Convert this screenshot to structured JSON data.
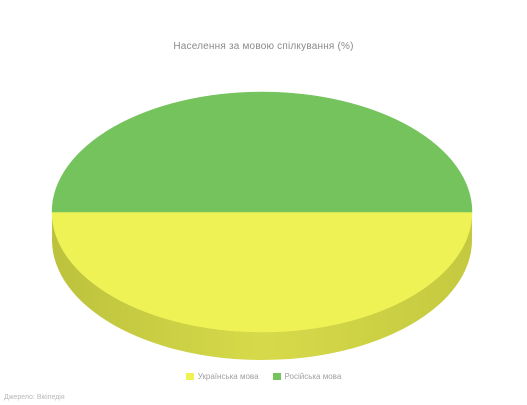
{
  "chart_data": {
    "type": "pie",
    "title": "Населення за мовою спілкування (%)",
    "slices": [
      {
        "label": "Українська мова",
        "value": 50,
        "color": "#eef255"
      },
      {
        "label": "Російська мова",
        "value": 50,
        "color": "#74c35c"
      }
    ],
    "legend_position": "bottom",
    "three_d": true
  },
  "source_note": "Джерело: Вікіпедія"
}
